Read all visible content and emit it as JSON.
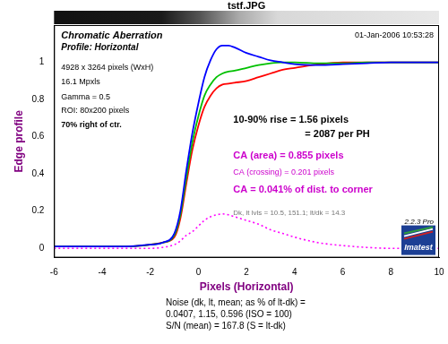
{
  "chart_data": {
    "type": "line",
    "title": "tstf.JPG",
    "x_label": "Pixels (Horizontal)",
    "y_label": "Edge profile",
    "x": [
      -6,
      -5,
      -4,
      -3,
      -2,
      -1.5,
      -1,
      -0.75,
      -0.5,
      -0.25,
      0,
      0.25,
      0.5,
      0.75,
      1,
      1.25,
      1.5,
      2,
      2.5,
      3,
      3.5,
      4,
      5,
      6,
      7,
      8,
      9,
      10
    ],
    "series": [
      {
        "color": "#0000ff",
        "line_style": "solid",
        "marker": "none",
        "values": [
          0.01,
          0.01,
          0.01,
          0.01,
          0.02,
          0.03,
          0.08,
          0.2,
          0.42,
          0.62,
          0.78,
          0.92,
          1.01,
          1.07,
          1.09,
          1.09,
          1.08,
          1.05,
          1.03,
          1.01,
          1.0,
          0.99,
          0.985,
          0.99,
          0.995,
          1.0,
          1.0,
          1.0
        ]
      },
      {
        "color": "#00c000",
        "line_style": "solid",
        "marker": "none",
        "values": [
          0.01,
          0.01,
          0.01,
          0.01,
          0.02,
          0.03,
          0.07,
          0.18,
          0.38,
          0.57,
          0.71,
          0.82,
          0.88,
          0.92,
          0.94,
          0.95,
          0.955,
          0.97,
          0.985,
          0.995,
          1.0,
          1.0,
          0.995,
          0.995,
          1.0,
          1.0,
          1.0,
          1.0
        ]
      },
      {
        "color": "#ff0000",
        "line_style": "solid",
        "marker": "none",
        "values": [
          0.01,
          0.01,
          0.01,
          0.01,
          0.02,
          0.03,
          0.06,
          0.16,
          0.35,
          0.53,
          0.66,
          0.76,
          0.82,
          0.86,
          0.88,
          0.885,
          0.89,
          0.9,
          0.92,
          0.94,
          0.96,
          0.97,
          0.99,
          1.0,
          1.0,
          1.0,
          1.0,
          1.0
        ]
      },
      {
        "color": "#ff00ff",
        "line_style": "dotted",
        "marker": "none",
        "values": [
          0,
          0,
          0,
          0,
          0,
          0.005,
          0.02,
          0.04,
          0.07,
          0.09,
          0.12,
          0.15,
          0.17,
          0.18,
          0.185,
          0.18,
          0.17,
          0.15,
          0.13,
          0.1,
          0.08,
          0.06,
          0.03,
          0.015,
          0.005,
          0,
          0,
          0
        ]
      }
    ],
    "xlim": [
      -6,
      10
    ],
    "xticks": [
      -6,
      -4,
      -2,
      0,
      2,
      4,
      6,
      8,
      10
    ],
    "ylim": [
      -0.05,
      1.2
    ],
    "yticks": [
      0,
      0.2,
      0.4,
      0.6,
      0.8,
      1
    ],
    "grid": false,
    "annotations": {
      "left": [
        "Chromatic Aberration",
        "Profile: Horizontal",
        "4928 x 3264 pixels (WxH)",
        "16.1 Mpxls",
        "Gamma = 0.5",
        "ROI: 80x200 pixels",
        "70% right of ctr."
      ],
      "date": "01-Jan-2006 10:53:28",
      "rise": [
        "10-90% rise = 1.56 pixels",
        "= 2087 per PH"
      ],
      "ca": [
        "CA (area) = 0.855 pixels",
        "CA (crossing) = 0.201 pixels",
        "CA = 0.041% of dist. to corner"
      ],
      "levels": "Dk, lt lvls = 10.5, 151.1; lt/dk = 14.3",
      "version": "2.2.3 Pro",
      "logo": "Imatest"
    },
    "footer": [
      "Noise (dk, lt, mean; as % of lt-dk) =",
      "0.0407, 1.15, 0.596 (ISO = 100)",
      "S/N (mean) = 167.8 (S = lt-dk)"
    ]
  }
}
